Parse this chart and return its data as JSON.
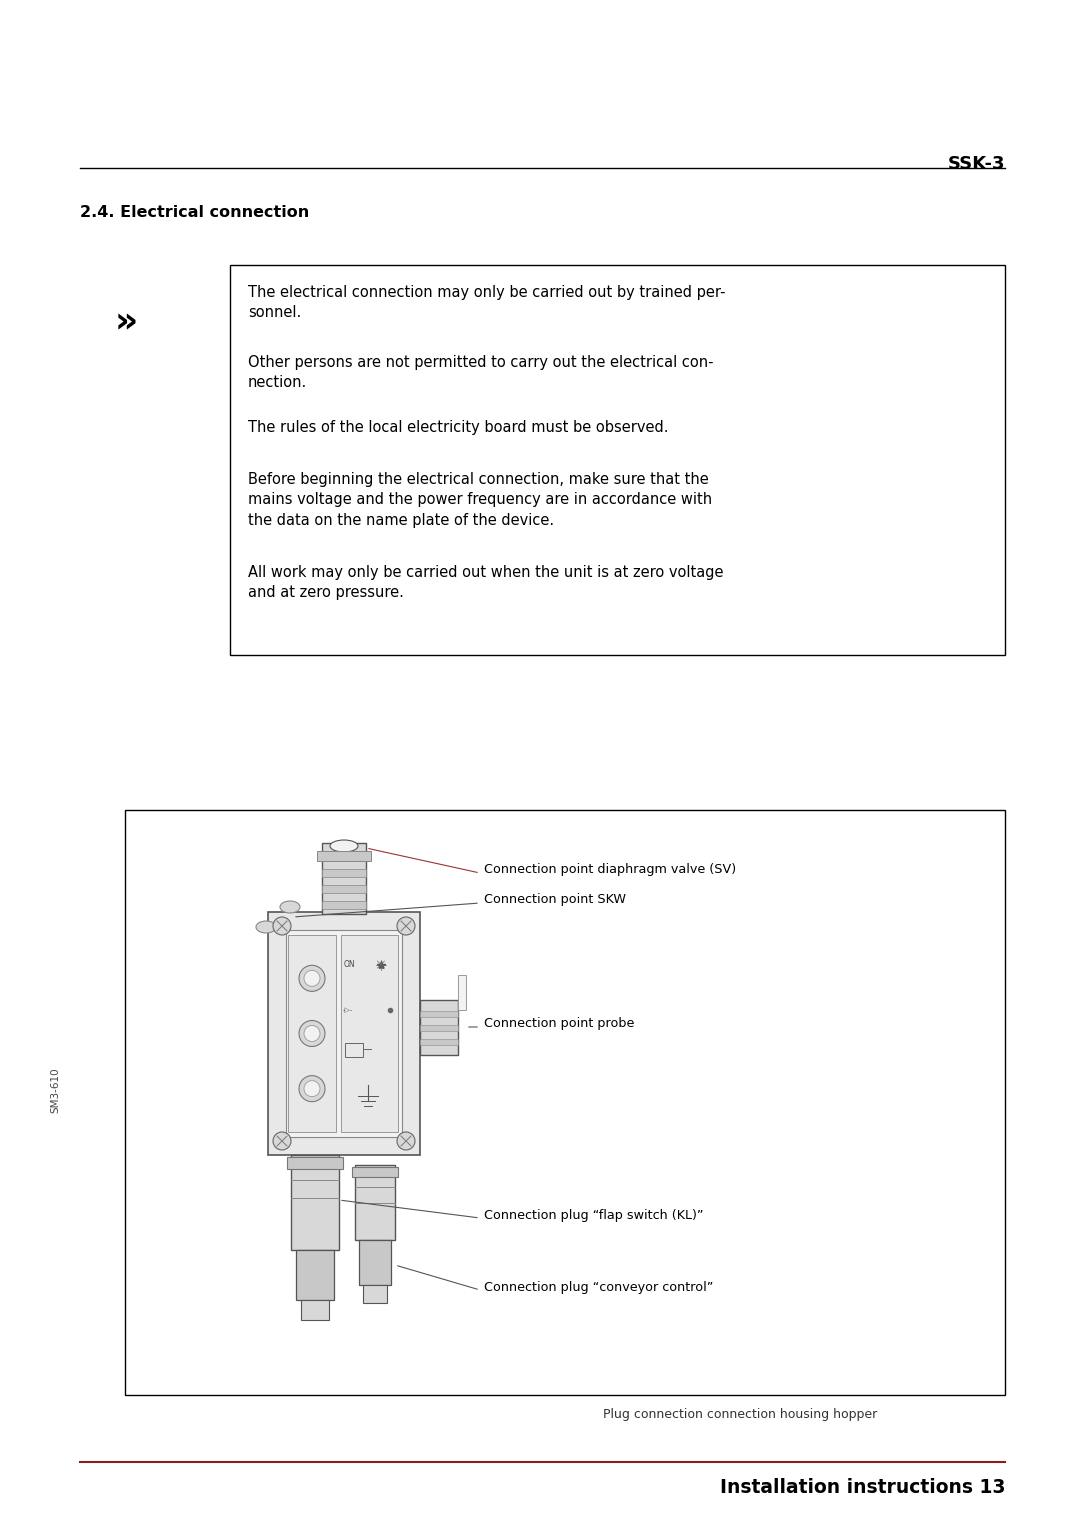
{
  "page_bg": "#ffffff",
  "header_title": "SSK-3",
  "section_heading": "2.4. Electrical connection",
  "warning_symbol": "»",
  "warning_texts": [
    "The electrical connection may only be carried out by trained per-\nsonnel.",
    "Other persons are not permitted to carry out the electrical con-\nnection.",
    "The rules of the local electricity board must be observed.",
    "Before beginning the electrical connection, make sure that the\nmains voltage and the power frequency are in accordance with\nthe data on the name plate of the device.",
    "All work may only be carried out when the unit is at zero voltage\nand at zero pressure."
  ],
  "diagram_labels": [
    "Connection point diaphragm valve (SV)",
    "Connection point SKW",
    "Connection point probe",
    "Connection plug “flap switch (KL)”",
    "Connection plug “conveyor control”"
  ],
  "diagram_caption": "Plug connection connection housing hopper",
  "side_label": "SM3-610",
  "footer_line_color": "#8B1a1a",
  "footer_text": "Installation instructions 13"
}
